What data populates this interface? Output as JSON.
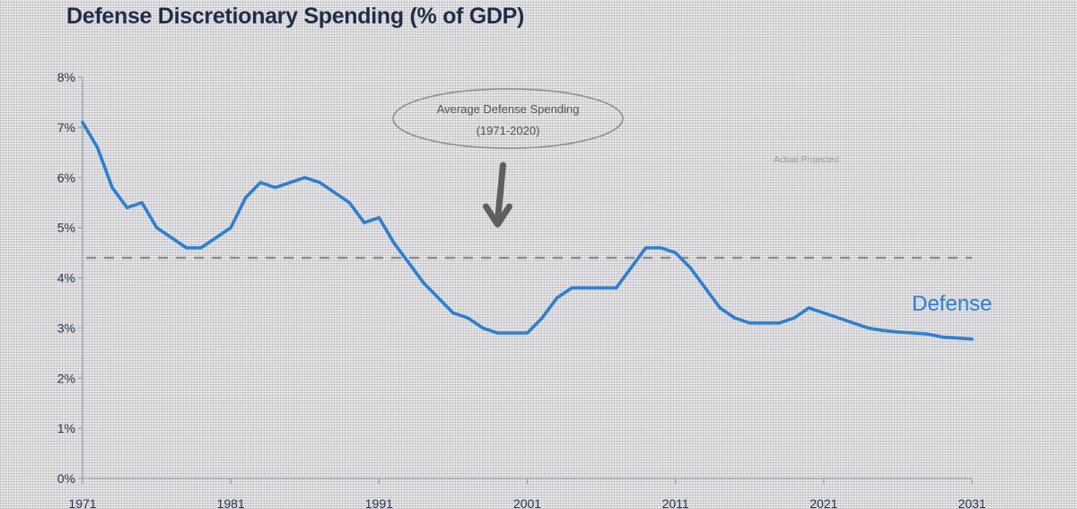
{
  "chart_data": {
    "type": "line",
    "title": "Defense Discretionary Spending (% of GDP)",
    "xlabel": "",
    "ylabel": "",
    "xlim": [
      1971,
      2031
    ],
    "ylim": [
      0,
      8
    ],
    "x_ticks": [
      "1971",
      "1981",
      "1991",
      "2001",
      "2011",
      "2021",
      "2031"
    ],
    "y_ticks": [
      "0%",
      "1%",
      "2%",
      "3%",
      "4%",
      "5%",
      "6%",
      "7%",
      "8%"
    ],
    "series": [
      {
        "name": "Defense",
        "color": "#2f7fd0",
        "x": [
          1971,
          1972,
          1973,
          1974,
          1975,
          1976,
          1977,
          1978,
          1979,
          1980,
          1981,
          1982,
          1983,
          1984,
          1985,
          1986,
          1987,
          1988,
          1989,
          1990,
          1991,
          1992,
          1993,
          1994,
          1995,
          1996,
          1997,
          1998,
          1999,
          2000,
          2001,
          2002,
          2003,
          2004,
          2005,
          2006,
          2007,
          2008,
          2009,
          2010,
          2011,
          2012,
          2013,
          2014,
          2015,
          2016,
          2017,
          2018,
          2019,
          2020,
          2021,
          2022,
          2023,
          2024,
          2025,
          2026,
          2027,
          2028,
          2029,
          2030,
          2031
        ],
        "values": [
          7.1,
          6.6,
          5.8,
          5.4,
          5.5,
          5.0,
          4.8,
          4.6,
          4.6,
          4.8,
          5.0,
          5.6,
          5.9,
          5.8,
          5.9,
          6.0,
          5.9,
          5.7,
          5.5,
          5.1,
          5.2,
          4.7,
          4.3,
          3.9,
          3.6,
          3.3,
          3.2,
          3.0,
          2.9,
          2.9,
          2.9,
          3.2,
          3.6,
          3.8,
          3.8,
          3.8,
          3.8,
          4.2,
          4.6,
          4.6,
          4.5,
          4.2,
          3.8,
          3.4,
          3.2,
          3.1,
          3.1,
          3.1,
          3.2,
          3.4,
          3.3,
          3.2,
          3.1,
          3.0,
          2.95,
          2.92,
          2.9,
          2.88,
          2.82,
          2.8,
          2.78
        ]
      }
    ],
    "reference_line": {
      "value": 4.4,
      "style": "dashed",
      "color": "#8c8c8c"
    },
    "annotation": {
      "line1": "Average Defense Spending",
      "line2": "(1971-2020)",
      "points_to_year": 1999
    },
    "faint_legend": "Actual    Projected",
    "grid": false
  }
}
